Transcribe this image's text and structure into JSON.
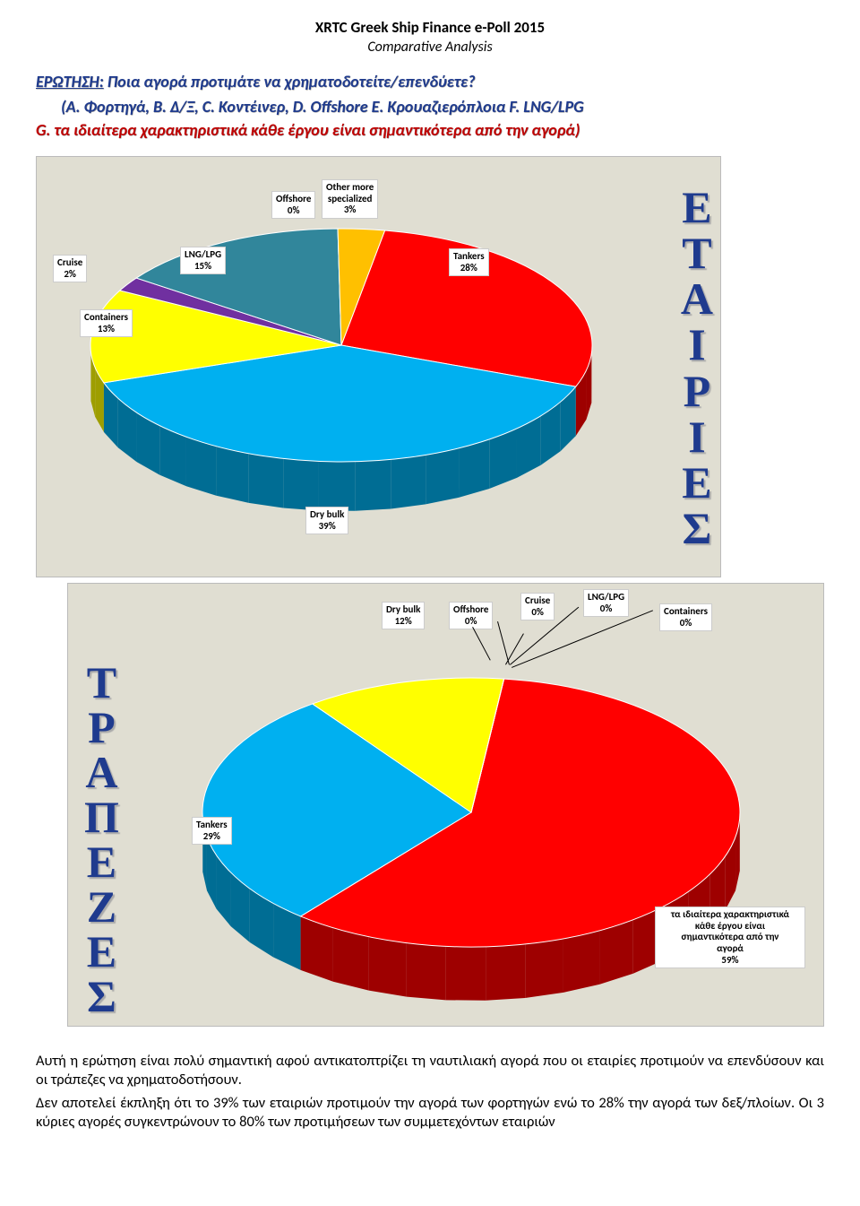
{
  "doc": {
    "title": "XRTC Greek Ship Finance e-Poll 2015",
    "subtitle": "Comparative Analysis"
  },
  "question": {
    "label": "ΕΡΩΤΗΣΗ:",
    "text": " Ποια αγορά προτιμάτε να χρηματοδοτείτε/επενδύετε?",
    "options_line": "(A. Φορτηγά, B. Δ/Ξ, C. Κοντέινερ, D. Offshore E. Κρουαζιερόπλοια F. LNG/LPG",
    "options_line2": "G. τα ιδιαίτερα χαρακτηριστικά κάθε έργου είναι σημαντικότερα από την αγορά)"
  },
  "chart1": {
    "type": "pie-3d",
    "side_label": "ΕΤΑΙΡΙΕΣ",
    "side_fontsize": 50,
    "background_color": "#e0ded2",
    "slices": [
      {
        "label": "Tankers",
        "display": "Tankers\n28%",
        "value": 28,
        "color": "#ff0000"
      },
      {
        "label": "Dry bulk",
        "display": "Dry bulk\n39%",
        "value": 39,
        "color": "#00b0f0"
      },
      {
        "label": "Containers",
        "display": "Containers\n13%",
        "value": 13,
        "color": "#ffff00"
      },
      {
        "label": "Cruise",
        "display": "Cruise\n2%",
        "value": 2,
        "color": "#7030a0"
      },
      {
        "label": "LNG/LPG",
        "display": "LNG/LPG\n15%",
        "value": 15,
        "color": "#31869b"
      },
      {
        "label": "Offshore",
        "display": "Offshore\n0%",
        "value": 0,
        "color": "#a6a6a6"
      },
      {
        "label": "Other more specialized",
        "display": "Other more\nspecialized\n3%",
        "value": 3,
        "color": "#ffc000"
      }
    ],
    "label_fontsize": 11,
    "label_bg": "#ffffff"
  },
  "chart2": {
    "type": "pie-3d",
    "side_label": "ΤΡΑΠΕΖΕΣ",
    "side_fontsize": 50,
    "background_color": "#e0ded2",
    "slices": [
      {
        "label": "χαρακτηριστικά",
        "display": "τα ιδιαίτερα χαρακτηριστικά\nκάθε έργου είναι\nσημαντικότερα από την\nαγορά\n59%",
        "value": 59,
        "color": "#ff0000"
      },
      {
        "label": "Tankers",
        "display": "Tankers\n29%",
        "value": 29,
        "color": "#00b0f0"
      },
      {
        "label": "Dry bulk",
        "display": "Dry bulk\n12%",
        "value": 12,
        "color": "#ffff00"
      },
      {
        "label": "Offshore",
        "display": "Offshore\n0%",
        "value": 0,
        "color": "#a6a6a6"
      },
      {
        "label": "Cruise",
        "display": "Cruise\n0%",
        "value": 0,
        "color": "#7030a0"
      },
      {
        "label": "LNG/LPG",
        "display": "LNG/LPG\n0%",
        "value": 0,
        "color": "#31869b"
      },
      {
        "label": "Containers",
        "display": "Containers\n0%",
        "value": 0,
        "color": "#ffc000"
      }
    ],
    "label_fontsize": 11,
    "label_bg": "#ffffff"
  },
  "body": {
    "p1": "Αυτή η ερώτηση είναι πολύ σημαντική αφού αντικατοπτρίζει τη ναυτιλιακή αγορά που οι εταιρίες προτιμούν να επενδύσουν και οι τράπεζες να χρηματοδοτήσουν.",
    "p2": "Δεν αποτελεί έκπληξη ότι το 39% των εταιριών προτιμούν την αγορά των φορτηγών ενώ το 28% την αγορά των δεξ/πλοίων. Οι 3 κύριες αγορές συγκεντρώνουν το 80% των προτιμήσεων των συμμετεχόντων εταιριών"
  }
}
